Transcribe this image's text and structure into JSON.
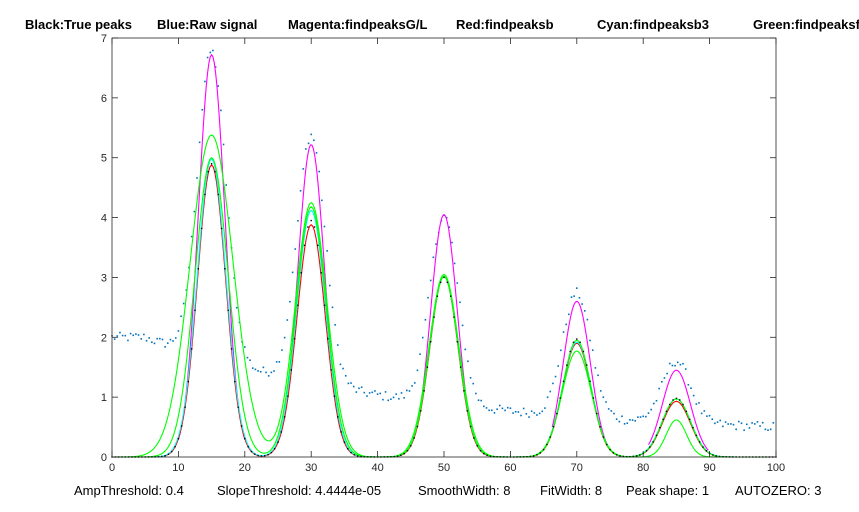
{
  "colors": {
    "true_peaks": "#000000",
    "raw_signal": "#0072bd",
    "findpeaksGL": "#ff00ff",
    "findpeaksb": "#ff0000",
    "findpeaksb3": "#00ffff",
    "findpeaksfit": "#00ff00",
    "axis": "#262626"
  },
  "chart_data": {
    "type": "line",
    "title_segments": [
      "Black:True peaks",
      "Blue:Raw signal",
      "Magenta:findpeaksG/L",
      "Red:findpeaksb",
      "Cyan:findpeaksb3",
      "Green:findpeaksfit."
    ],
    "xlim": [
      0,
      100
    ],
    "ylim": [
      0,
      7
    ],
    "x_ticks": [
      0,
      10,
      20,
      30,
      40,
      50,
      60,
      70,
      80,
      90,
      100
    ],
    "y_ticks": [
      0,
      1,
      2,
      3,
      4,
      5,
      6,
      7
    ],
    "x_tick_labels": [
      "0",
      "10",
      "20",
      "30",
      "40",
      "50",
      "60",
      "70",
      "80",
      "90",
      "100"
    ],
    "y_tick_labels": [
      "0",
      "1",
      "2",
      "3",
      "4",
      "5",
      "6",
      "7"
    ],
    "peak_positions": [
      15,
      30,
      50,
      70,
      85
    ],
    "true_peak_heights": [
      4.9,
      3.95,
      3.0,
      1.97,
      0.98
    ],
    "true_peak_widths": [
      5.0,
      5.0,
      5.0,
      5.0,
      5.0
    ],
    "raw_baseline": {
      "start": 2.0,
      "end": 0.35,
      "decay": 40
    },
    "series": [
      {
        "name": "True peaks",
        "style": "dots",
        "color_key": "true_peaks",
        "peaks": [
          {
            "pos": 15,
            "height": 4.9,
            "width": 5.0
          },
          {
            "pos": 30,
            "height": 3.95,
            "width": 5.0
          },
          {
            "pos": 50,
            "height": 3.0,
            "width": 5.0
          },
          {
            "pos": 70,
            "height": 1.97,
            "width": 5.0
          },
          {
            "pos": 85,
            "height": 0.98,
            "width": 5.0
          }
        ]
      },
      {
        "name": "findpeaksG/L",
        "style": "segments",
        "color_key": "findpeaksGL",
        "peaks": [
          {
            "pos": 15,
            "height": 6.72,
            "width": 4.7,
            "range": [
              10,
              20
            ]
          },
          {
            "pos": 30,
            "height": 5.22,
            "width": 4.7,
            "range": [
              25.5,
              34.5
            ]
          },
          {
            "pos": 50,
            "height": 4.05,
            "width": 4.7,
            "range": [
              45.5,
              54.5
            ]
          },
          {
            "pos": 70,
            "height": 2.6,
            "width": 4.8,
            "range": [
              66.3,
              74.7
            ]
          },
          {
            "pos": 85,
            "height": 1.45,
            "width": 5.0,
            "range": [
              80.8,
              89.8
            ]
          }
        ]
      },
      {
        "name": "findpeaksb",
        "style": "line",
        "color_key": "findpeaksb",
        "peaks": [
          {
            "pos": 15,
            "height": 4.88,
            "width": 5.0
          },
          {
            "pos": 30,
            "height": 3.88,
            "width": 5.0
          },
          {
            "pos": 50,
            "height": 3.02,
            "width": 5.0
          },
          {
            "pos": 70,
            "height": 1.9,
            "width": 5.0
          },
          {
            "pos": 85,
            "height": 0.93,
            "width": 5.0
          }
        ]
      },
      {
        "name": "findpeaksb3",
        "style": "line",
        "color_key": "findpeaksb3",
        "peaks": [
          {
            "pos": 15,
            "height": 4.98,
            "width": 5.1
          },
          {
            "pos": 30,
            "height": 4.12,
            "width": 5.1
          },
          {
            "pos": 50,
            "height": 3.02,
            "width": 5.1
          },
          {
            "pos": 70,
            "height": 1.92,
            "width": 5.1
          },
          {
            "pos": 85,
            "height": 0.97,
            "width": 5.1
          }
        ]
      },
      {
        "name": "findpeaksfit A",
        "style": "line",
        "color_key": "findpeaksfit",
        "peaks": [
          {
            "pos": 15,
            "height": 5.38,
            "width": 7.6
          },
          {
            "pos": 30,
            "height": 4.25,
            "width": 5.6
          },
          {
            "pos": 50,
            "height": 3.05,
            "width": 5.3
          },
          {
            "pos": 70,
            "height": 1.77,
            "width": 5.2
          },
          {
            "pos": 85,
            "height": 0.62,
            "width": 3.6
          }
        ]
      },
      {
        "name": "findpeaksfit B",
        "style": "line",
        "color_key": "findpeaksfit",
        "peaks": [
          {
            "pos": 15,
            "height": 5.0,
            "width": 5.9
          },
          {
            "pos": 30,
            "height": 4.18,
            "width": 5.3
          },
          {
            "pos": 50,
            "height": 3.02,
            "width": 5.1
          },
          {
            "pos": 70,
            "height": 1.95,
            "width": 5.0
          },
          {
            "pos": 85,
            "height": 0.97,
            "width": 5.0
          }
        ]
      }
    ],
    "parameters": [
      "AmpThreshold: 0.4",
      "SlopeThreshold: 4.4444e-05",
      "SmoothWidth: 8",
      "FitWidth: 8",
      "Peak shape: 1",
      "AUTOZERO: 3"
    ]
  }
}
